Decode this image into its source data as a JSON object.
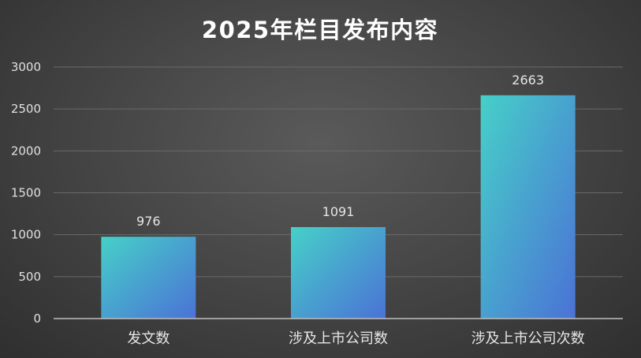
{
  "chart_data": {
    "type": "bar",
    "title": "2025年栏目发布内容",
    "categories": [
      "发文数",
      "涉及上市公司数",
      "涉及上市公司次数"
    ],
    "values": [
      976,
      1091,
      2663
    ],
    "data_labels": [
      "976",
      "1091",
      "2663"
    ],
    "y_ticks": [
      0,
      500,
      1000,
      1500,
      2000,
      2500,
      3000
    ],
    "ylim": [
      0,
      3000
    ],
    "xlabel": "",
    "ylabel": "",
    "grid": true,
    "legend": "none",
    "colors": {
      "bar_gradient_start": "#46d0c8",
      "bar_gradient_end": "#4b72d6",
      "background": "#4a4a4a",
      "gridline": "#6a6a6a",
      "text": "#e6e6e6"
    }
  }
}
